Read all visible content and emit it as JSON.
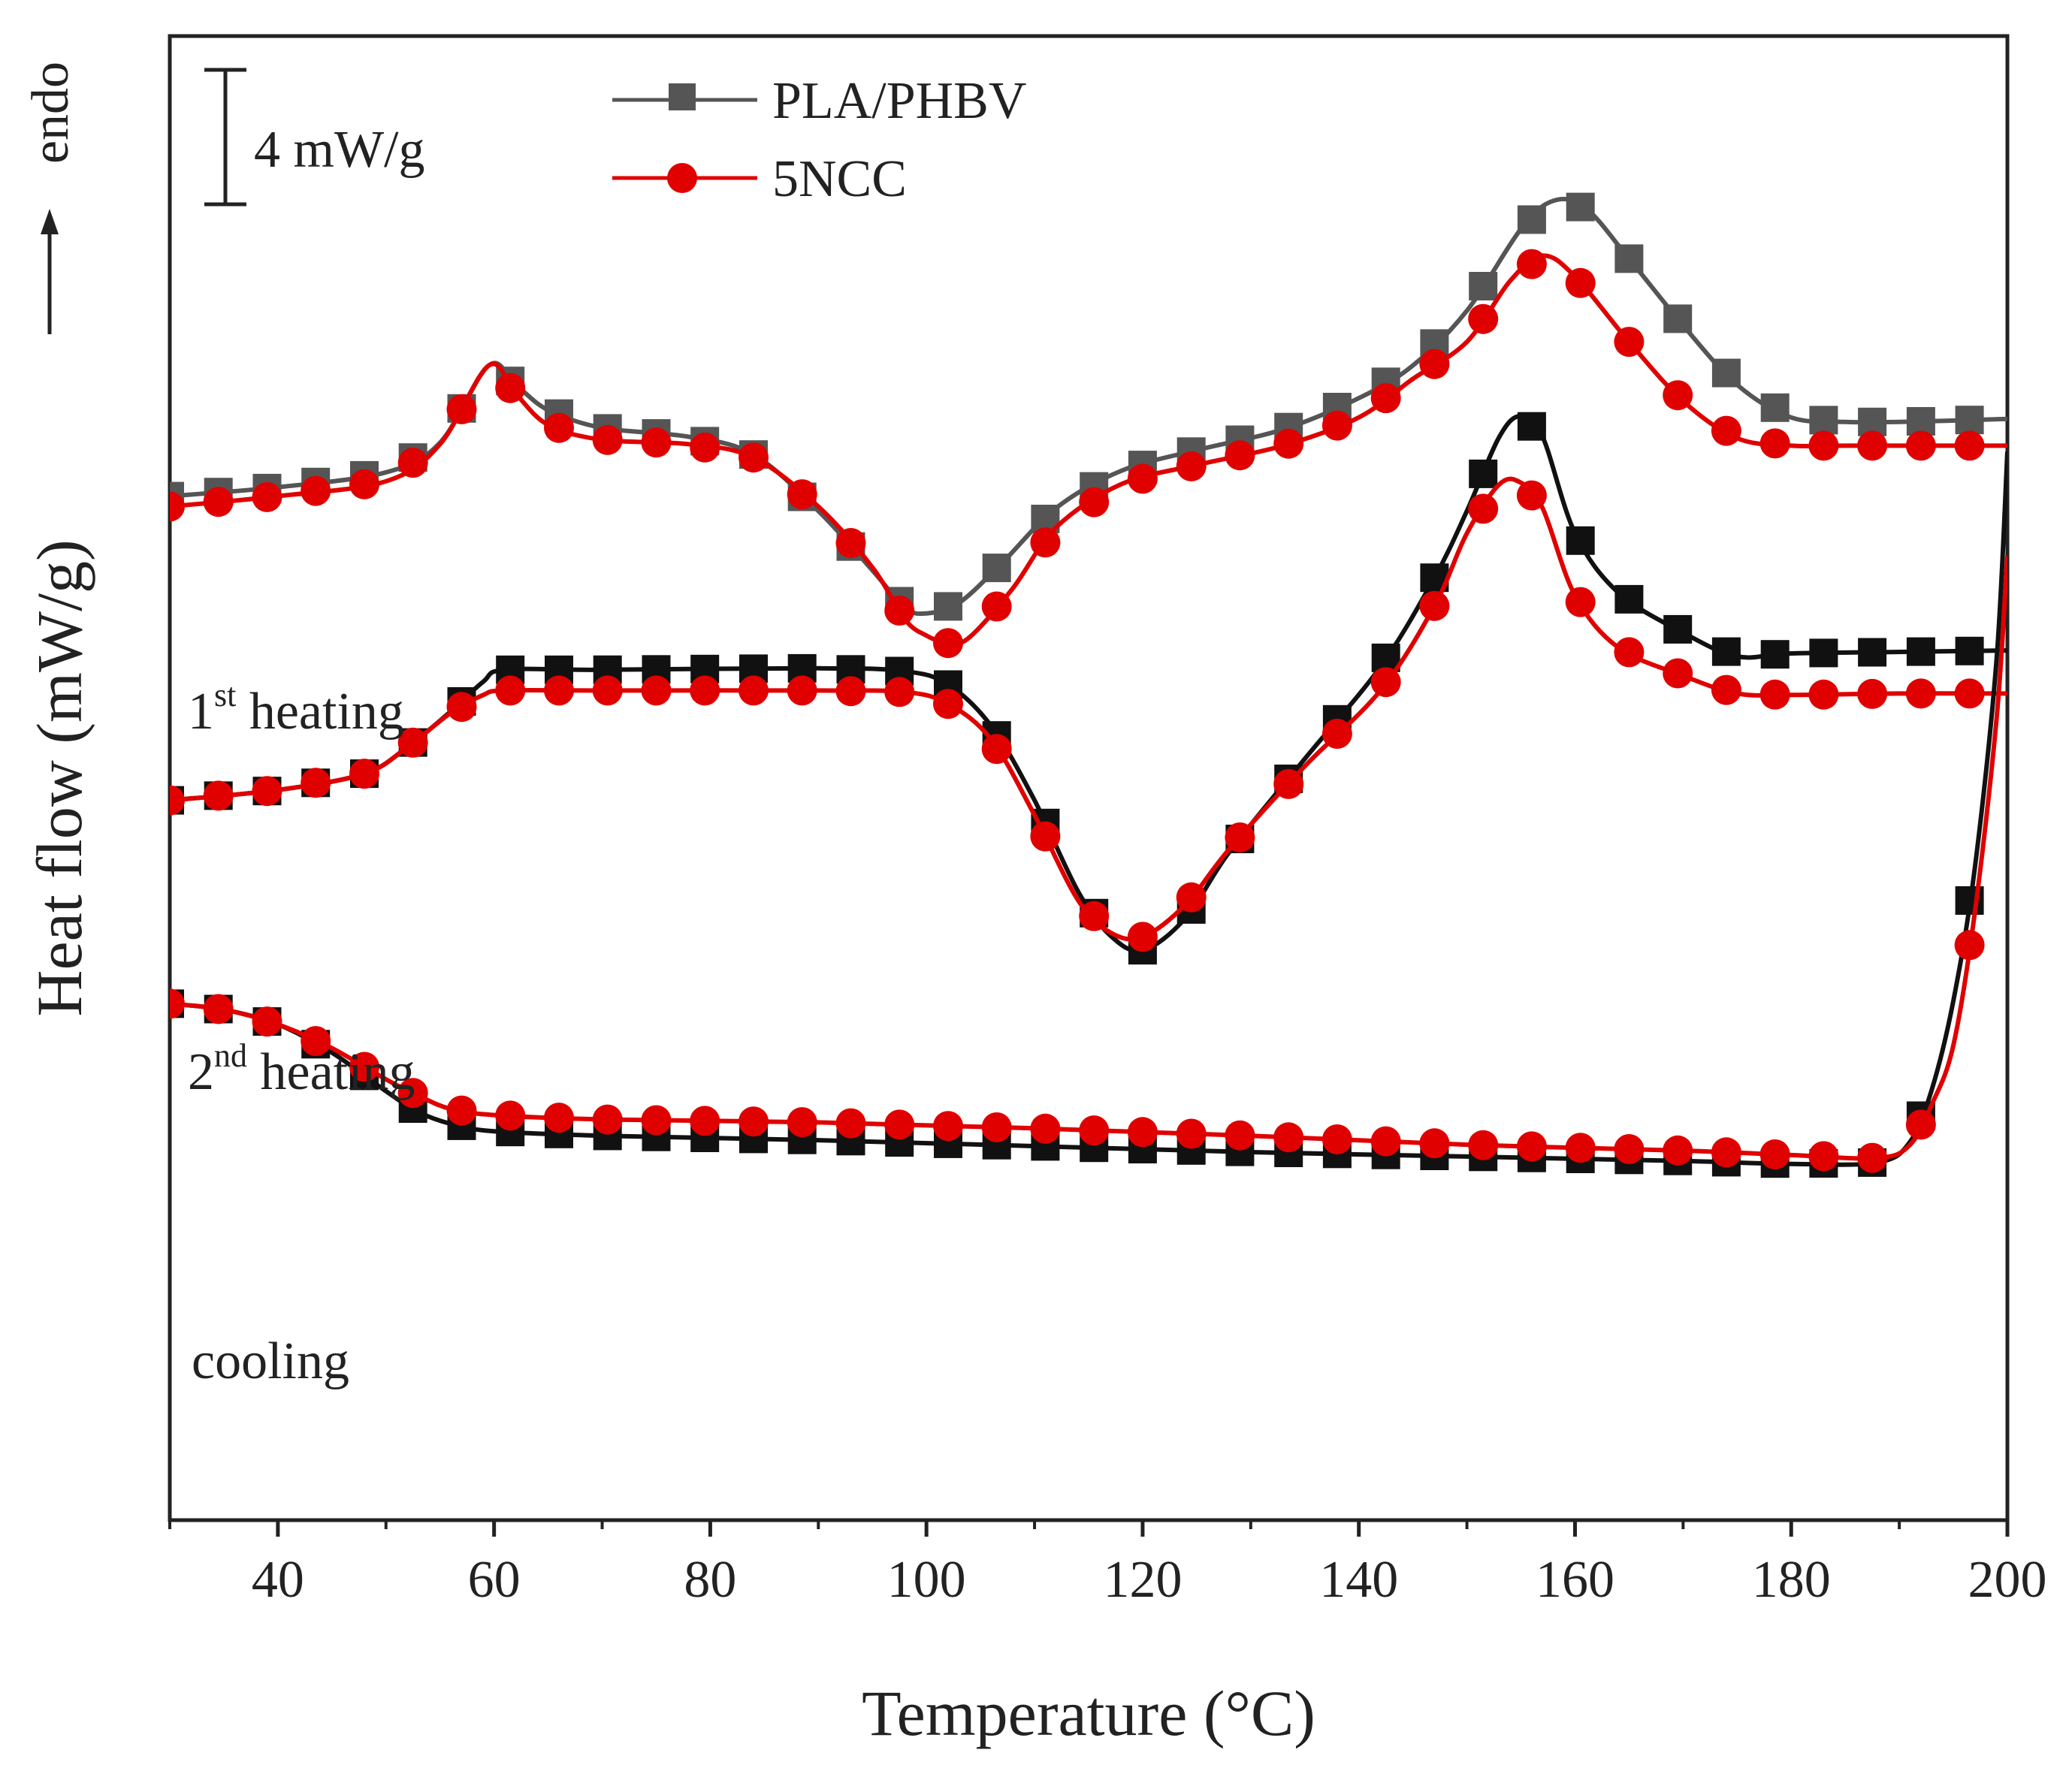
{
  "chart_data": {
    "type": "line",
    "title": "",
    "xlabel": "Temperature (°C)",
    "ylabel": "Heat flow (mW/g)",
    "xlim": [
      30,
      200
    ],
    "ylim": [
      0,
      100
    ],
    "xticks": [
      40,
      60,
      80,
      100,
      120,
      140,
      160,
      180,
      200
    ],
    "xtick_labels": [
      "40",
      "60",
      "80",
      "100",
      "120",
      "140",
      "160",
      "180",
      "200"
    ],
    "endo_label": "endo",
    "scale_bar_label": "4 mW/g",
    "legend": [
      {
        "name": "PLA/PHBV",
        "marker": "square",
        "color": "#555555"
      },
      {
        "name": "5NCC",
        "marker": "circle",
        "color": "#e00000"
      }
    ],
    "curve_labels": [
      {
        "id": "first",
        "prefix": "1",
        "sup": "st",
        "text": " heating"
      },
      {
        "id": "second",
        "prefix": "2",
        "sup": "nd",
        "text": " heating"
      },
      {
        "id": "cooling",
        "prefix": "cooling",
        "sup": "",
        "text": ""
      }
    ],
    "series": [
      {
        "name": "PLA/PHBV",
        "segment": "1st heating",
        "color": "#555555",
        "marker": "square",
        "x": [
          30,
          40,
          50,
          55,
          59.5,
          62,
          65,
          70,
          78,
          84,
          90,
          95,
          98,
          100,
          103,
          107,
          112,
          118,
          125,
          133,
          140,
          145,
          150,
          155,
          158,
          161,
          165,
          170,
          175,
          180,
          185,
          190,
          200
        ],
        "y": [
          69,
          69.6,
          70.6,
          72.6,
          77.8,
          76.5,
          74.8,
          73.6,
          73,
          71.8,
          68,
          64,
          61.5,
          61.1,
          61.8,
          64.5,
          68.2,
          70.7,
          72.1,
          73.5,
          75.6,
          77.8,
          81.5,
          87,
          88.9,
          88.4,
          85,
          80.5,
          76.5,
          74.3,
          74,
          74,
          74.2
        ]
      },
      {
        "name": "5NCC",
        "segment": "1st heating",
        "color": "#e00000",
        "marker": "circle",
        "x": [
          30,
          40,
          50,
          55,
          59.5,
          62,
          65,
          70,
          78,
          84,
          90,
          95,
          98,
          100,
          102,
          104,
          108,
          112,
          118,
          125,
          133,
          140,
          145,
          150,
          154,
          157,
          160,
          165,
          170,
          175,
          180,
          185,
          190,
          200
        ],
        "y": [
          68.3,
          69,
          70,
          72.5,
          77.8,
          75.9,
          73.8,
          72.8,
          72.5,
          71.6,
          68.3,
          64.2,
          60.7,
          59.6,
          59.1,
          59.5,
          62.8,
          66.9,
          69.8,
          71.1,
          72.4,
          74.3,
          76.9,
          79.4,
          83.5,
          85.2,
          83.8,
          79.4,
          75.4,
          72.9,
          72.4,
          72.4,
          72.4,
          72.4
        ]
      },
      {
        "name": "PLA/PHBV",
        "segment": "2nd heating",
        "color": "#111111",
        "marker": "square",
        "x": [
          30,
          40,
          48,
          52,
          56,
          59,
          61,
          70,
          90,
          98,
          102,
          106,
          110,
          114,
          117,
          120,
          124,
          128,
          135,
          142,
          147,
          150,
          153,
          155,
          157,
          160,
          164,
          170,
          175,
          180,
          190,
          200
        ],
        "y": [
          48.5,
          49.2,
          50.3,
          52.1,
          54.5,
          56.5,
          57.3,
          57.3,
          57.4,
          57.2,
          56.3,
          53.5,
          48.5,
          42.4,
          39.4,
          38.4,
          40.6,
          45,
          51.3,
          57.5,
          63.5,
          68,
          73,
          74.4,
          73,
          66.5,
          62.5,
          59.8,
          58.2,
          58.4,
          58.5,
          58.6
        ]
      },
      {
        "name": "5NCC",
        "segment": "2nd heating",
        "color": "#e00000",
        "marker": "circle",
        "x": [
          30,
          40,
          48,
          52,
          56,
          59,
          61,
          70,
          90,
          98,
          102,
          106,
          110,
          114,
          117,
          120,
          124,
          128,
          135,
          142,
          147,
          150,
          153,
          155,
          157,
          160,
          164,
          170,
          175,
          180,
          190,
          200
        ],
        "y": [
          48.5,
          49.2,
          50.3,
          52.1,
          54.4,
          55.6,
          55.9,
          55.9,
          55.9,
          55.8,
          55,
          52.6,
          47.5,
          41.8,
          39.6,
          39.3,
          41.5,
          45.2,
          50.8,
          55.9,
          61.6,
          66.5,
          69.8,
          69.9,
          68.2,
          62.3,
          58.8,
          56.9,
          55.7,
          55.6,
          55.7,
          55.7
        ]
      },
      {
        "name": "PLA/PHBV",
        "segment": "cooling",
        "color": "#111111",
        "marker": "square",
        "x": [
          30,
          35,
          40,
          45,
          50,
          53,
          56,
          60,
          70,
          90,
          110,
          130,
          150,
          170,
          180,
          188,
          191,
          193,
          195,
          197,
          199,
          200
        ],
        "y": [
          34.8,
          34.4,
          33.4,
          31.5,
          28.9,
          27.5,
          26.7,
          26.2,
          25.9,
          25.6,
          25.2,
          24.8,
          24.5,
          24.2,
          24,
          24.1,
          25.5,
          29,
          35,
          44,
          58,
          72
        ]
      },
      {
        "name": "5NCC",
        "segment": "cooling",
        "color": "#e00000",
        "marker": "circle",
        "x": [
          30,
          35,
          40,
          45,
          50,
          53,
          56,
          60,
          70,
          90,
          110,
          130,
          150,
          170,
          180,
          188,
          191,
          193,
          195,
          197,
          199,
          200
        ],
        "y": [
          34.8,
          34.4,
          33.4,
          31.8,
          29.7,
          28.6,
          27.7,
          27.3,
          27,
          26.8,
          26.4,
          25.9,
          25.3,
          24.9,
          24.6,
          24.4,
          25.3,
          28,
          32,
          41,
          54,
          65
        ]
      }
    ]
  }
}
